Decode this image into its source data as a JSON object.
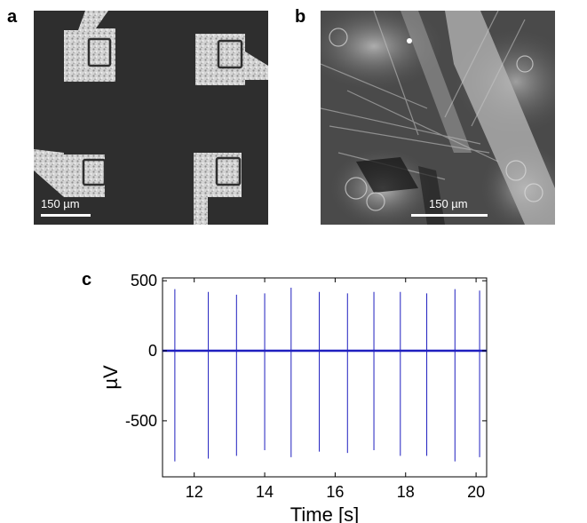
{
  "panels": {
    "a": {
      "label": "a",
      "scalebar": "150 µm"
    },
    "b": {
      "label": "b",
      "scalebar": "150 µm"
    },
    "c": {
      "label": "c"
    }
  },
  "colors": {
    "trace": "#1f1fbf",
    "micro_a_background": "#2b2b2b",
    "micro_a_electrode": "#d8d8d8",
    "micro_b_background": "#555555"
  },
  "chart_data": {
    "type": "line",
    "title": "",
    "xlabel": "Time [s]",
    "ylabel": "µV",
    "xlim": [
      11.1,
      20.3
    ],
    "ylim": [
      -900,
      520
    ],
    "xticks": [
      12,
      14,
      16,
      18,
      20
    ],
    "yticks": [
      500,
      0,
      -500
    ],
    "baseline": 0,
    "spikes": [
      {
        "t": 11.45,
        "max": 440,
        "min": -790
      },
      {
        "t": 12.4,
        "max": 420,
        "min": -770
      },
      {
        "t": 13.2,
        "max": 400,
        "min": -750
      },
      {
        "t": 14.0,
        "max": 410,
        "min": -710
      },
      {
        "t": 14.75,
        "max": 450,
        "min": -760
      },
      {
        "t": 15.55,
        "max": 420,
        "min": -720
      },
      {
        "t": 16.35,
        "max": 410,
        "min": -730
      },
      {
        "t": 17.1,
        "max": 420,
        "min": -710
      },
      {
        "t": 17.85,
        "max": 420,
        "min": -750
      },
      {
        "t": 18.6,
        "max": 410,
        "min": -750
      },
      {
        "t": 19.4,
        "max": 440,
        "min": -790
      },
      {
        "t": 20.1,
        "max": 430,
        "min": -760
      }
    ],
    "grid": false,
    "legend": "none"
  }
}
